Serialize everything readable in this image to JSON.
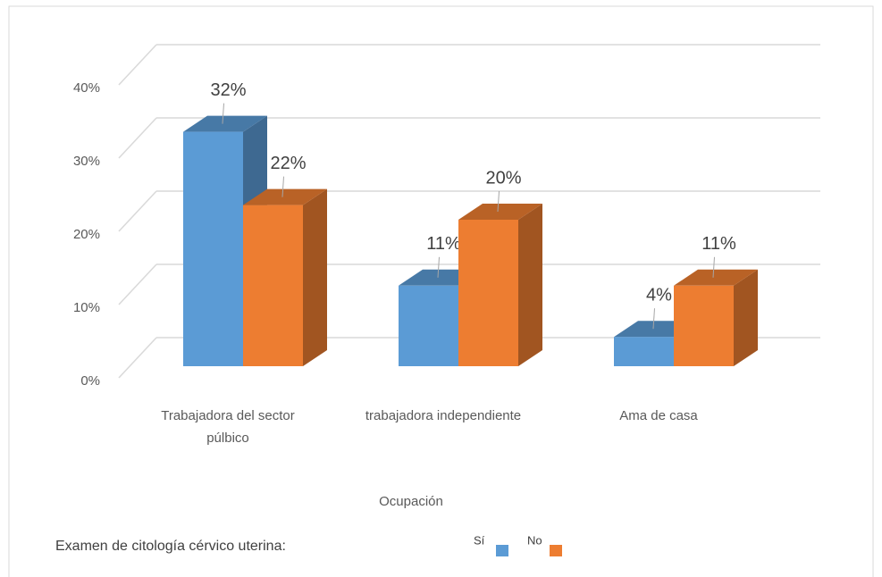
{
  "chart_data": {
    "type": "bar3d",
    "x_label": "Ocupación",
    "legend_title": "Examen de citología  cérvico uterina:",
    "categories": [
      "Trabajadora del sector púlbico",
      "trabajadora independiente",
      "Ama de casa"
    ],
    "series": [
      {
        "name": "Sí",
        "color": "#5b9bd5",
        "values": [
          32,
          11,
          4
        ],
        "value_labels": [
          "32%",
          "11%",
          "4%"
        ]
      },
      {
        "name": "No",
        "color": "#ed7d31",
        "values": [
          22,
          20,
          11
        ],
        "value_labels": [
          "22%",
          "20%",
          "11%"
        ]
      }
    ],
    "ylim": [
      0,
      40
    ],
    "yticks": [
      {
        "value": 0,
        "label": "0%"
      },
      {
        "value": 10,
        "label": "10%"
      },
      {
        "value": 20,
        "label": "20%"
      },
      {
        "value": 30,
        "label": "30%"
      },
      {
        "value": 40,
        "label": "40%"
      }
    ],
    "grid": true
  }
}
